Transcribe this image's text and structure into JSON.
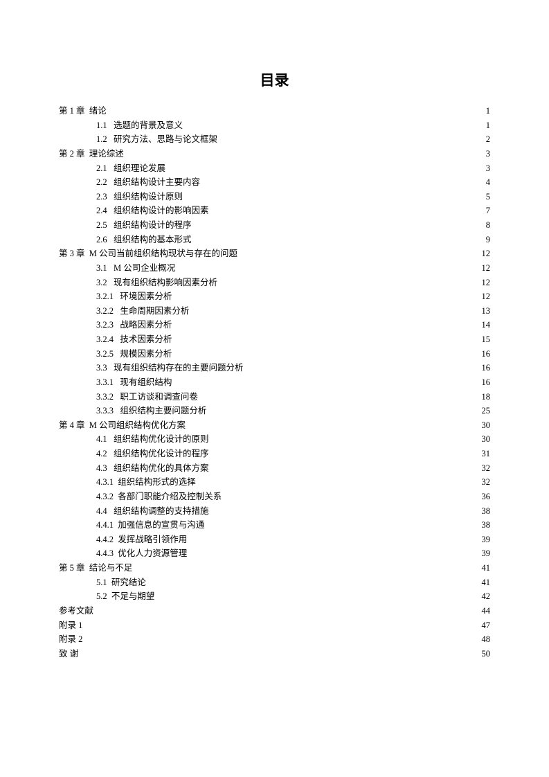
{
  "title": "目录",
  "entries": [
    {
      "level": 0,
      "num": "第 1 章",
      "gap": "  ",
      "text": "绪论",
      "page": "1"
    },
    {
      "level": 1,
      "num": "1.1",
      "gap": "   ",
      "text": "选题的背景及意义",
      "page": "1"
    },
    {
      "level": 1,
      "num": "1.2",
      "gap": "   ",
      "text": "研究方法、思路与论文框架",
      "page": "2"
    },
    {
      "level": 0,
      "num": "第 2 章",
      "gap": "  ",
      "text": "理论综述",
      "page": "3"
    },
    {
      "level": 1,
      "num": "2.1",
      "gap": "   ",
      "text": "组织理论发展",
      "page": "3"
    },
    {
      "level": 1,
      "num": "2.2",
      "gap": "   ",
      "text": "组织结构设计主要内容",
      "page": "4"
    },
    {
      "level": 1,
      "num": "2.3",
      "gap": "   ",
      "text": "组织结构设计原则",
      "page": "5"
    },
    {
      "level": 1,
      "num": "2.4",
      "gap": "   ",
      "text": "组织结构设计的影响因素",
      "page": "7"
    },
    {
      "level": 1,
      "num": "2.5",
      "gap": "   ",
      "text": "组织结构设计的程序",
      "page": "8"
    },
    {
      "level": 1,
      "num": "2.6",
      "gap": "   ",
      "text": "组织结构的基本形式",
      "page": "9"
    },
    {
      "level": 0,
      "num": "第 3 章",
      "gap": "  ",
      "text": "M 公司当前组织结构现状与存在的问题",
      "page": "12"
    },
    {
      "level": 1,
      "num": "3.1",
      "gap": "   ",
      "text": "M 公司企业概况",
      "page": "12"
    },
    {
      "level": 1,
      "num": "3.2",
      "gap": "   ",
      "text": "现有组织结构影响因素分析",
      "page": "12"
    },
    {
      "level": 2,
      "num": "3.2.1",
      "gap": "   ",
      "text": "环境因素分析",
      "page": "12"
    },
    {
      "level": 2,
      "num": "3.2.2",
      "gap": "   ",
      "text": "生命周期因素分析",
      "page": "13"
    },
    {
      "level": 2,
      "num": "3.2.3",
      "gap": "   ",
      "text": "战略因素分析",
      "page": "14"
    },
    {
      "level": 2,
      "num": "3.2.4",
      "gap": "   ",
      "text": "技术因素分析",
      "page": "15"
    },
    {
      "level": 2,
      "num": "3.2.5",
      "gap": "   ",
      "text": "规模因素分析",
      "page": "16"
    },
    {
      "level": 1,
      "num": "3.3",
      "gap": "   ",
      "text": "现有组织结构存在的主要问题分析",
      "page": "16"
    },
    {
      "level": 2,
      "num": "3.3.1",
      "gap": "   ",
      "text": "现有组织结构",
      "page": "16"
    },
    {
      "level": 2,
      "num": "3.3.2",
      "gap": "   ",
      "text": "职工访谈和调查问卷",
      "page": "18"
    },
    {
      "level": 2,
      "num": "3.3.3",
      "gap": "   ",
      "text": "组织结构主要问题分析",
      "page": "25"
    },
    {
      "level": 0,
      "num": "第 4 章",
      "gap": "  ",
      "text": "M 公司组织结构优化方案",
      "page": "30"
    },
    {
      "level": 1,
      "num": "4.1",
      "gap": "   ",
      "text": "组织结构优化设计的原则",
      "page": "30"
    },
    {
      "level": 1,
      "num": "4.2",
      "gap": "   ",
      "text": "组织结构优化设计的程序",
      "page": "31"
    },
    {
      "level": 1,
      "num": "4.3",
      "gap": "   ",
      "text": "组织结构优化的具体方案",
      "page": "32"
    },
    {
      "level": 2,
      "num": "4.3.1",
      "gap": "  ",
      "text": "组织结构形式的选择",
      "page": "32"
    },
    {
      "level": 2,
      "num": "4.3.2",
      "gap": "  ",
      "text": "各部门职能介绍及控制关系",
      "page": "36"
    },
    {
      "level": 1,
      "num": "4.4",
      "gap": "   ",
      "text": "组织结构调整的支持措施",
      "page": "38"
    },
    {
      "level": 2,
      "num": "4.4.1",
      "gap": "  ",
      "text": "加强信息的宣贯与沟通",
      "page": "38"
    },
    {
      "level": 2,
      "num": "4.4.2",
      "gap": "  ",
      "text": "发挥战略引领作用",
      "page": "39"
    },
    {
      "level": 2,
      "num": "4.4.3",
      "gap": "  ",
      "text": "优化人力资源管理",
      "page": "39"
    },
    {
      "level": 0,
      "num": "第 5 章",
      "gap": "  ",
      "text": "结论与不足",
      "page": "41"
    },
    {
      "level": 1,
      "num": "5.1",
      "gap": "  ",
      "text": "研究结论",
      "page": "41"
    },
    {
      "level": 1,
      "num": "5.2",
      "gap": "  ",
      "text": "不足与期望",
      "page": "42"
    },
    {
      "level": 0,
      "num": "参考文献",
      "gap": "",
      "text": "",
      "page": "44"
    },
    {
      "level": 0,
      "num": "附录  1",
      "gap": "",
      "text": "",
      "page": "47"
    },
    {
      "level": 0,
      "num": "附录  2",
      "gap": "",
      "text": "",
      "page": "48"
    },
    {
      "level": 0,
      "num": "致  谢",
      "gap": "",
      "text": "",
      "page": "50"
    }
  ]
}
